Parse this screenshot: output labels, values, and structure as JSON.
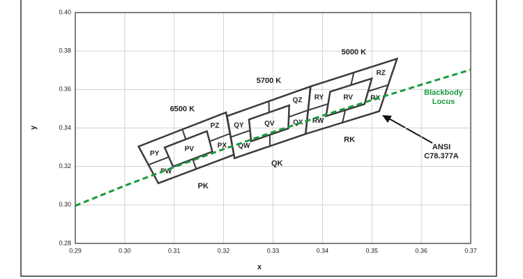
{
  "chart_data": {
    "type": "line",
    "x_label": "x",
    "y_label": "y",
    "xlim": [
      0.29,
      0.37
    ],
    "xticks": [
      0.29,
      {
        "value": 0.3,
        "label": "0.30"
      },
      0.31,
      0.32,
      0.33,
      0.34,
      0.35,
      0.36,
      0.37
    ],
    "ylim": [
      0.28,
      0.4
    ],
    "yticks": [
      0.28,
      {
        "value": 0.3,
        "label": "0.30"
      },
      0.32,
      0.34,
      0.36,
      0.38,
      {
        "value": 0.4,
        "label": "0.40"
      }
    ],
    "grid": true,
    "series": [
      {
        "name": "Blackbody Locus",
        "color": "#1a9a3c",
        "dashed": true,
        "x": [
          0.29,
          0.3,
          0.31,
          0.32,
          0.33,
          0.34,
          0.35,
          0.36,
          0.37
        ],
        "values": [
          0.2996,
          0.31,
          0.3197,
          0.329,
          0.3379,
          0.3464,
          0.3545,
          0.3625,
          0.3703
        ]
      }
    ],
    "quadrangles": [
      {
        "label": "6500 K",
        "region": "PK",
        "x": [
          0.3028,
          0.3205,
          0.3221,
          0.3068
        ],
        "y": [
          0.3304,
          0.3481,
          0.3261,
          0.3113
        ],
        "sub_labels": [
          "PY",
          "PZ",
          "PX",
          "PW"
        ],
        "center_label": "PV"
      },
      {
        "label": "5700 K",
        "region": "QK",
        "x": [
          0.3207,
          0.3376,
          0.3366,
          0.3222
        ],
        "y": [
          0.3462,
          0.3616,
          0.3369,
          0.3243
        ],
        "sub_labels": [
          "QY",
          "QZ",
          "QX",
          "QW"
        ],
        "center_label": "QV"
      },
      {
        "label": "5000 K",
        "region": "RK",
        "x": [
          0.3376,
          0.3551,
          0.3515,
          0.3366
        ],
        "y": [
          0.3616,
          0.376,
          0.3487,
          0.3369
        ],
        "sub_labels": [
          "RY",
          "RZ",
          "RX",
          "RW"
        ],
        "center_label": "RV"
      }
    ],
    "annotation": "ANSI C78.377A"
  }
}
